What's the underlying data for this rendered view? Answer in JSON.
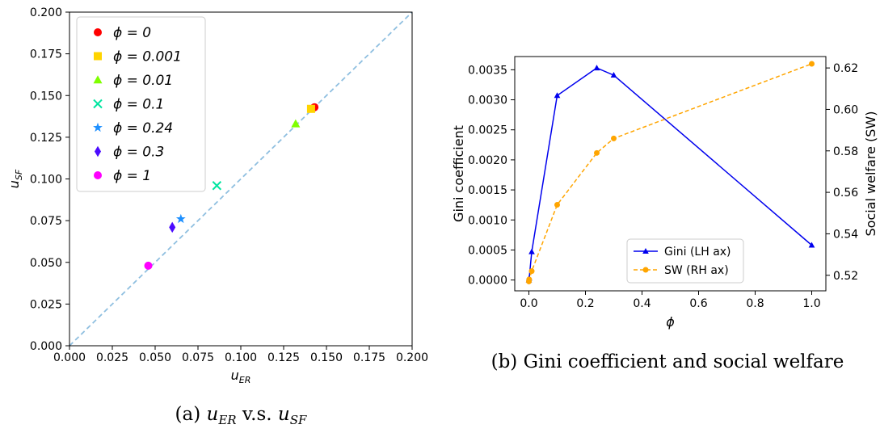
{
  "chart_data": [
    {
      "type": "scatter",
      "xlabel": "u_ER",
      "ylabel": "u_SF",
      "xlim": [
        0,
        0.2
      ],
      "ylim": [
        0,
        0.2
      ],
      "xticks": [
        "0.000",
        "0.025",
        "0.050",
        "0.075",
        "0.100",
        "0.125",
        "0.150",
        "0.175",
        "0.200"
      ],
      "yticks": [
        "0.000",
        "0.025",
        "0.050",
        "0.075",
        "0.100",
        "0.125",
        "0.150",
        "0.175",
        "0.200"
      ],
      "reference_line": "y = x (dashed)",
      "legend_position": "top-left",
      "series": [
        {
          "name": "ϕ = 0",
          "marker": "circle",
          "color": "#ff0000",
          "x": 0.143,
          "y": 0.143
        },
        {
          "name": "ϕ = 0.001",
          "marker": "square",
          "color": "#ffd400",
          "x": 0.141,
          "y": 0.142
        },
        {
          "name": "ϕ = 0.01",
          "marker": "triangle",
          "color": "#7fff00",
          "x": 0.132,
          "y": 0.133
        },
        {
          "name": "ϕ = 0.1",
          "marker": "x",
          "color": "#00e5a0",
          "x": 0.086,
          "y": 0.096
        },
        {
          "name": "ϕ = 0.24",
          "marker": "star",
          "color": "#1e90ff",
          "x": 0.065,
          "y": 0.076
        },
        {
          "name": "ϕ = 0.3",
          "marker": "diamond",
          "color": "#4b0bff",
          "x": 0.06,
          "y": 0.071
        },
        {
          "name": "ϕ = 1",
          "marker": "circle",
          "color": "#ff00ff",
          "x": 0.046,
          "y": 0.048
        }
      ]
    },
    {
      "type": "line",
      "xlabel": "ϕ",
      "ylabel_left": "Gini coefficient",
      "ylabel_right": "Social welfare (SW)",
      "xlim": [
        -0.05,
        1.05
      ],
      "ylim_left": [
        -0.00018,
        0.00372
      ],
      "ylim_right": [
        0.5125,
        0.6255
      ],
      "xticks": [
        0.0,
        0.2,
        0.4,
        0.6,
        0.8,
        1.0
      ],
      "xtick_labels": [
        "0.0",
        "0.2",
        "0.4",
        "0.6",
        "0.8",
        "1.0"
      ],
      "yticks_left": [
        0,
        0.0005,
        0.001,
        0.0015,
        0.002,
        0.0025,
        0.003,
        0.0035
      ],
      "ytick_labels_left": [
        "0.0000",
        "0.0005",
        "0.0010",
        "0.0015",
        "0.0020",
        "0.0025",
        "0.0030",
        "0.0035"
      ],
      "yticks_right": [
        0.52,
        0.54,
        0.56,
        0.58,
        0.6,
        0.62
      ],
      "ytick_labels_right": [
        "0.52",
        "0.54",
        "0.56",
        "0.58",
        "0.60",
        "0.62"
      ],
      "legend_position": "lower-center",
      "series": [
        {
          "name": "Gini (LH ax)",
          "axis": "left",
          "color": "#0000ee",
          "marker": "triangle",
          "style": "solid",
          "x": [
            0,
            0.001,
            0.01,
            0.1,
            0.24,
            0.3,
            1.0
          ],
          "y": [
            0.0,
            3e-05,
            0.00047,
            0.00307,
            0.00353,
            0.00341,
            0.00058
          ]
        },
        {
          "name": "SW (RH ax)",
          "axis": "right",
          "color": "#ffa500",
          "marker": "circle",
          "style": "dashed",
          "x": [
            0,
            0.001,
            0.01,
            0.1,
            0.24,
            0.3,
            1.0
          ],
          "y": [
            0.517,
            0.518,
            0.522,
            0.554,
            0.579,
            0.586,
            0.622
          ]
        }
      ]
    }
  ],
  "captions": {
    "a": {
      "prefix": "(a) ",
      "var1": "u",
      "sub1": "ER",
      "mid": " v.s. ",
      "var2": "u",
      "sub2": "SF"
    },
    "b": "(b) Gini coefficient and social welfare"
  }
}
